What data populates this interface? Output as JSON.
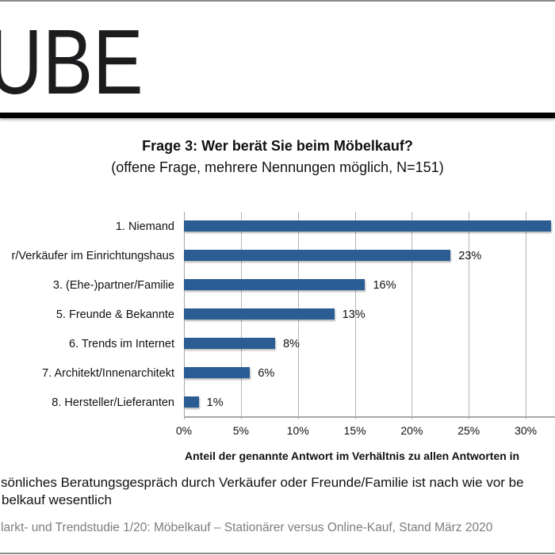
{
  "header": {
    "brand_text": "UBE"
  },
  "title": "Frage 3: Wer berät Sie beim Möbelkauf?",
  "subtitle": "(offene Frage, mehrere Nennungen möglich, N=151)",
  "axis": {
    "xlabel": "Anteil der genannte Antwort im Verhältnis zu allen Antworten in"
  },
  "summary": {
    "line1": "sönliches Beratungsgespräch durch Verkäufer oder Freunde/Familie ist nach wie vor be",
    "line2": "belkauf wesentlich"
  },
  "footer": {
    "source": "larkt- und Trendstudie 1/20: Möbelkauf – Stationärer versus Online-Kauf, Stand März 2020"
  },
  "colors": {
    "bar": "#2b5c94",
    "grid": "#b5b5b5",
    "text": "#111111",
    "footer_text": "#7d7d7d",
    "rule": "#000000"
  },
  "chart_data": {
    "type": "bar",
    "orientation": "horizontal",
    "title": "Frage 3: Wer berät Sie beim Möbelkauf?",
    "subtitle": "(offene Frage, mehrere Nennungen möglich, N=151)",
    "categories": [
      "1. Niemand",
      "r/Verkäufer im Einrichtungshaus",
      "3. (Ehe-)partner/Familie",
      "5. Freunde & Bekannte",
      "6. Trends im Internet",
      "7. Architekt/Innenarchitekt",
      "8. Hersteller/Lieferanten"
    ],
    "values": [
      32.2,
      23.4,
      15.9,
      13.2,
      8.0,
      5.8,
      1.3
    ],
    "value_labels": [
      null,
      "23%",
      "16%",
      "13%",
      "8%",
      "6%",
      "1%"
    ],
    "unit": "%",
    "xlabel": "Anteil der genannte Antwort im Verhältnis zu allen Antworten in",
    "ylabel": "",
    "xticks": [
      0,
      5,
      10,
      15,
      20,
      25,
      30
    ],
    "xtick_labels": [
      "0%",
      "5%",
      "10%",
      "15%",
      "20%",
      "25%",
      "30%"
    ],
    "xlim": [
      0,
      32.5
    ],
    "grid": true,
    "legend": null
  }
}
